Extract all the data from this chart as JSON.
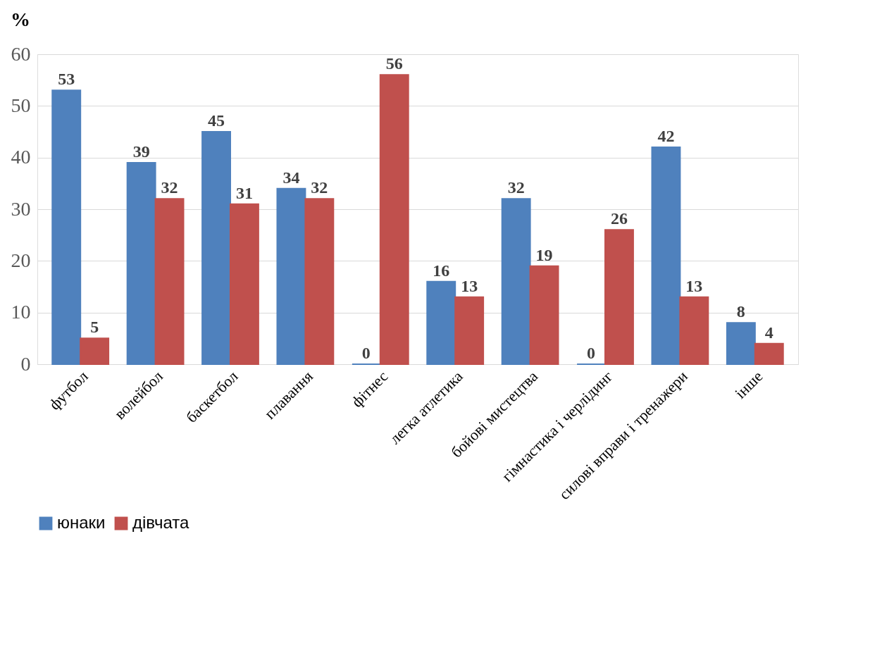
{
  "chart_data": {
    "type": "bar",
    "ylabel": "%",
    "categories": [
      "футбол",
      "волейбол",
      "баскетбол",
      "плавання",
      "фітнес",
      "легка атлетика",
      "бойові мистецтва",
      "гімнастика і черлідинг",
      "силові вправи і тренажери",
      "інше"
    ],
    "series": [
      {
        "name": "юнаки",
        "color": "#4f81bd",
        "values": [
          53,
          39,
          45,
          34,
          0,
          16,
          32,
          0,
          42,
          8
        ]
      },
      {
        "name": "дівчата",
        "color": "#c0504d",
        "values": [
          5,
          32,
          31,
          32,
          56,
          13,
          19,
          26,
          13,
          4
        ]
      }
    ],
    "ylim": [
      0,
      60
    ],
    "yticks": [
      0,
      10,
      20,
      30,
      40,
      50,
      60
    ],
    "grid": "y",
    "legend": "bottom",
    "data_labels": true
  }
}
